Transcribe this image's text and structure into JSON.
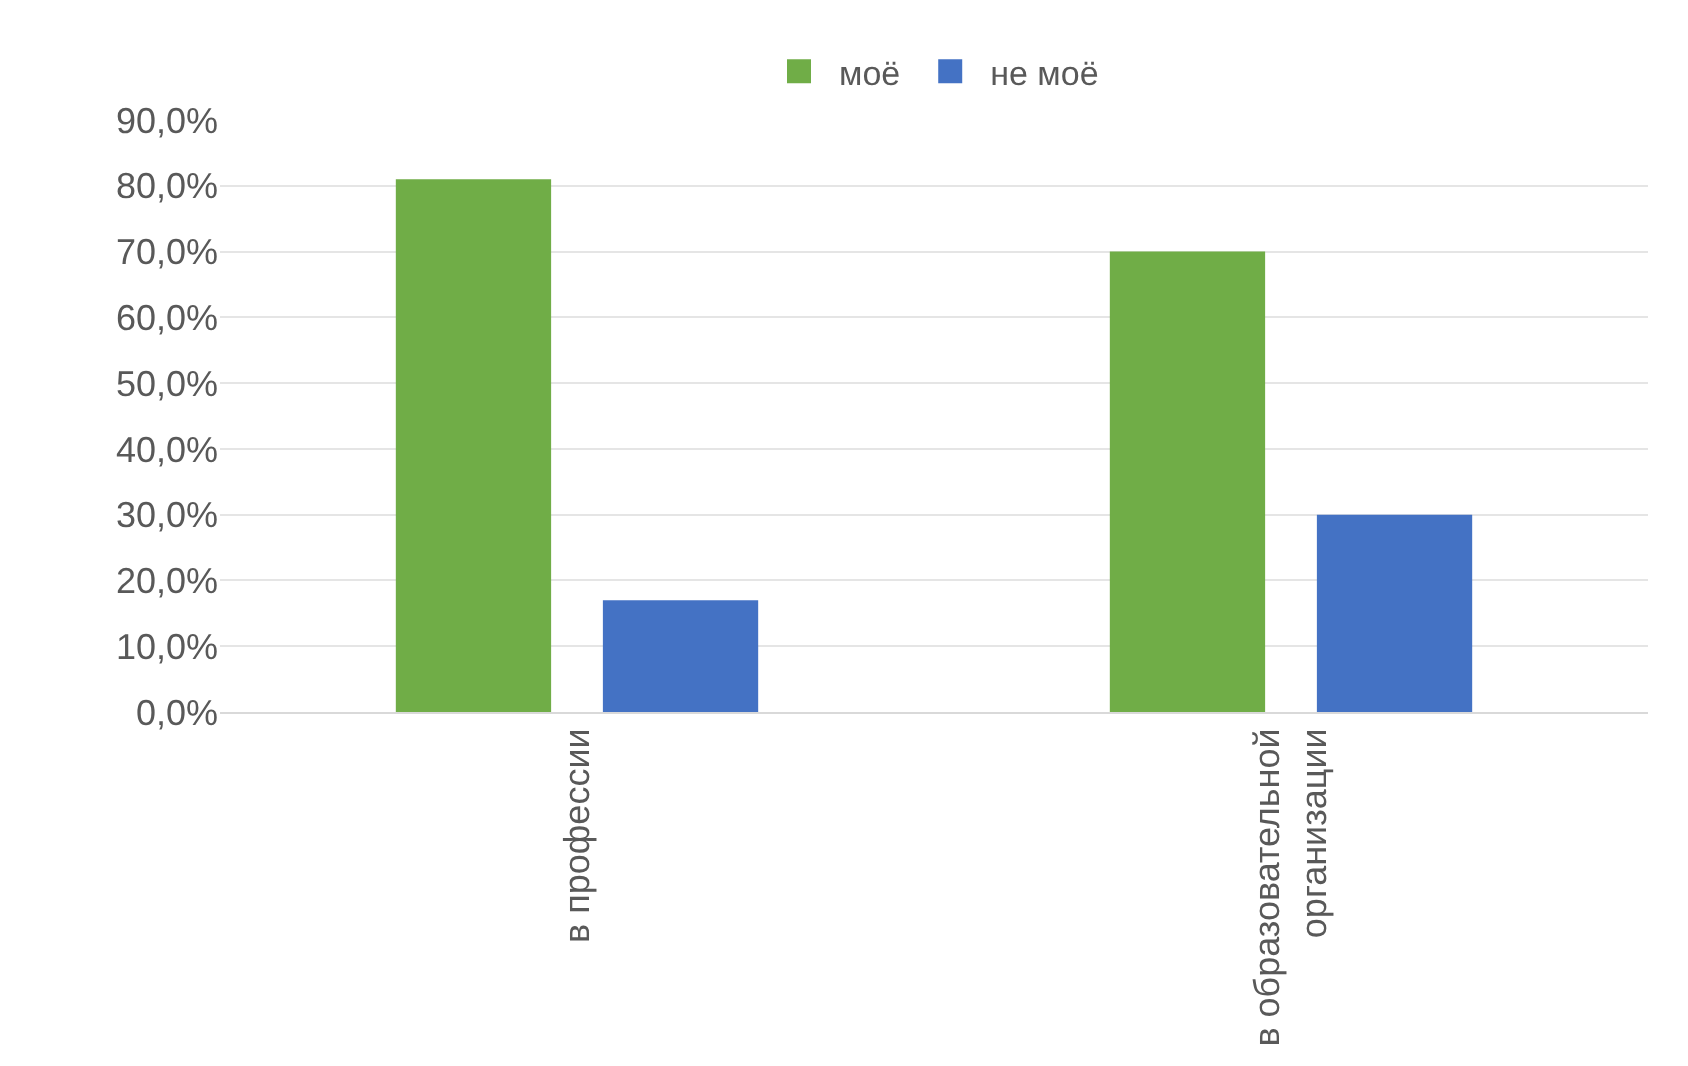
{
  "chart_data": {
    "type": "bar",
    "categories": [
      "в профессии",
      "в образовательной\nорганизации"
    ],
    "series": [
      {
        "name": "моё",
        "color": "#70ad47",
        "values": [
          81,
          70
        ]
      },
      {
        "name": "не моё",
        "color": "#4472c4",
        "values": [
          17,
          30
        ]
      }
    ],
    "ylim": [
      0,
      90
    ],
    "yticks": [
      {
        "value": 0,
        "label": "0,0%"
      },
      {
        "value": 10,
        "label": "10,0%"
      },
      {
        "value": 20,
        "label": "20,0%"
      },
      {
        "value": 30,
        "label": "30,0%"
      },
      {
        "value": 40,
        "label": "40,0%"
      },
      {
        "value": 50,
        "label": "50,0%"
      },
      {
        "value": 60,
        "label": "60,0%"
      },
      {
        "value": 70,
        "label": "70,0%"
      },
      {
        "value": 80,
        "label": "80,0%"
      },
      {
        "value": 90,
        "label": "90,0%"
      }
    ],
    "grid": "y",
    "legend": "top"
  }
}
